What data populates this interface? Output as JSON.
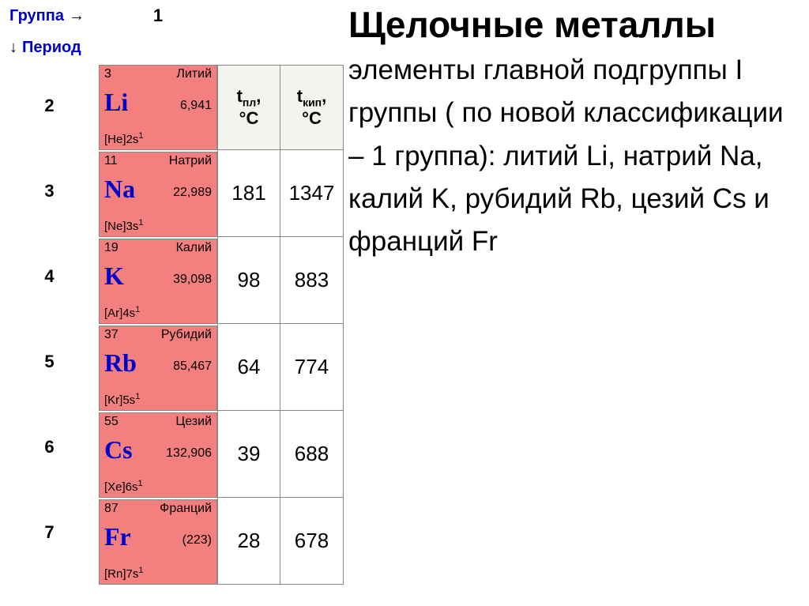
{
  "header": {
    "group_label": "Группа",
    "arrow_right": "→",
    "period_label": "Период",
    "arrow_down": "↓",
    "group_number": "1"
  },
  "periods": [
    "2",
    "3",
    "4",
    "5",
    "6",
    "7"
  ],
  "elements": [
    {
      "num": "3",
      "name": "Литий",
      "symbol": "Li",
      "mass": "6,941",
      "config_base": "[He]2s",
      "config_sup": "1",
      "bg": "#f47f7f"
    },
    {
      "num": "11",
      "name": "Натрий",
      "symbol": "Na",
      "mass": "22,989",
      "config_base": "[Ne]3s",
      "config_sup": "1",
      "bg": "#f47f7f"
    },
    {
      "num": "19",
      "name": "Калий",
      "symbol": "K",
      "mass": "39,098",
      "config_base": "[Ar]4s",
      "config_sup": "1",
      "bg": "#f47f7f"
    },
    {
      "num": "37",
      "name": "Рубидий",
      "symbol": "Rb",
      "mass": "85,467",
      "config_base": "[Kr]5s",
      "config_sup": "1",
      "bg": "#f47f7f"
    },
    {
      "num": "55",
      "name": "Цезий",
      "symbol": "Cs",
      "mass": "132,906",
      "config_base": "[Xe]6s",
      "config_sup": "1",
      "bg": "#f47f7f"
    },
    {
      "num": "87",
      "name": "Франций",
      "symbol": "Fr",
      "mass": "(223)",
      "config_base": "[Rn]7s",
      "config_sup": "1",
      "bg": "#f47f7f"
    }
  ],
  "temp_table": {
    "header_melt_main": "t",
    "header_melt_sub": "пл",
    "header_boil_main": "t",
    "header_boil_sub": "кип",
    "deg": "°С",
    "rows": [
      {
        "melt": "181",
        "boil": "1347"
      },
      {
        "melt": "98",
        "boil": "883"
      },
      {
        "melt": "64",
        "boil": "774"
      },
      {
        "melt": "39",
        "boil": "688"
      },
      {
        "melt": "28",
        "boil": "678"
      }
    ]
  },
  "content": {
    "title": "Щелочные металлы",
    "body": "элементы главной подгруппы I группы ( по новой классификации – 1 группа): литий Li, натрий Na, калий K, рубидий Rb, цезий Cs и франций Fr"
  },
  "colors": {
    "link_blue": "#0000cc",
    "element_bg": "#f47f7f",
    "border": "#888888",
    "head_bg": "#f4f4ee",
    "text": "#000000",
    "page_bg": "#ffffff"
  }
}
